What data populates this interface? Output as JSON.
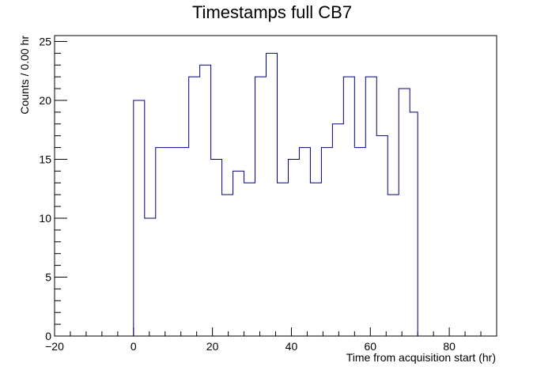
{
  "chart_data": {
    "type": "bar",
    "style": "step-histogram",
    "title": "Timestamps full CB7",
    "xlabel": "Time from acquisition start (hr)",
    "ylabel": "Counts / 0.00 hr",
    "xlim": [
      -20,
      92
    ],
    "ylim": [
      0,
      25.5
    ],
    "x_ticks": [
      -20,
      0,
      20,
      40,
      60,
      80
    ],
    "y_ticks": [
      0,
      5,
      10,
      15,
      20,
      25
    ],
    "bin_edges": [
      0,
      2.8,
      5.6,
      8.4,
      11.2,
      14.0,
      16.8,
      19.6,
      22.4,
      25.2,
      28.0,
      30.8,
      33.6,
      36.4,
      39.2,
      42.0,
      44.8,
      47.6,
      50.4,
      53.2,
      56.0,
      58.8,
      61.6,
      64.4,
      67.2,
      70.0,
      72.0
    ],
    "values": [
      20,
      10,
      16,
      16,
      16,
      22,
      23,
      15,
      12,
      14,
      13,
      22,
      24,
      13,
      15,
      16,
      13,
      16,
      18,
      22,
      16,
      22,
      17,
      12,
      21,
      19
    ],
    "line_color": "#000080",
    "frame_color": "#000000",
    "grid": false
  }
}
